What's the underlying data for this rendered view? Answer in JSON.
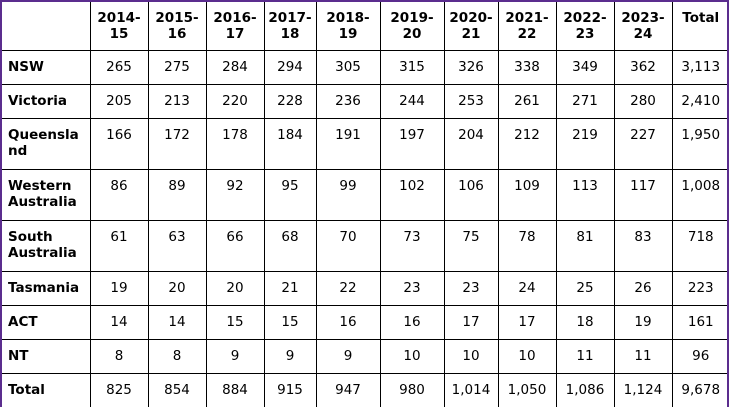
{
  "table": {
    "corner": "",
    "headers": [
      [
        "2014-",
        "15"
      ],
      [
        "2015-",
        "16"
      ],
      [
        "2016-",
        "17"
      ],
      [
        "2017-",
        "18"
      ],
      [
        "2018-",
        "19"
      ],
      [
        "2019-",
        "20"
      ],
      [
        "2020-",
        "21"
      ],
      [
        "2021-",
        "22"
      ],
      [
        "2022-",
        "23"
      ],
      [
        "2023-",
        "24"
      ],
      [
        "Total",
        ""
      ]
    ],
    "rows": [
      {
        "label": [
          "NSW"
        ],
        "values": [
          "265",
          "275",
          "284",
          "294",
          "305",
          "315",
          "326",
          "338",
          "349",
          "362",
          "3,113"
        ]
      },
      {
        "label": [
          "Victoria"
        ],
        "values": [
          "205",
          "213",
          "220",
          "228",
          "236",
          "244",
          "253",
          "261",
          "271",
          "280",
          "2,410"
        ]
      },
      {
        "label": [
          "Queensla",
          "nd"
        ],
        "values": [
          "166",
          "172",
          "178",
          "184",
          "191",
          "197",
          "204",
          "212",
          "219",
          "227",
          "1,950"
        ]
      },
      {
        "label": [
          "Western",
          "Australia"
        ],
        "values": [
          "86",
          "89",
          "92",
          "95",
          "99",
          "102",
          "106",
          "109",
          "113",
          "117",
          "1,008"
        ]
      },
      {
        "label": [
          "South",
          "Australia"
        ],
        "values": [
          "61",
          "63",
          "66",
          "68",
          "70",
          "73",
          "75",
          "78",
          "81",
          "83",
          "718"
        ]
      },
      {
        "label": [
          "Tasmania"
        ],
        "values": [
          "19",
          "20",
          "20",
          "21",
          "22",
          "23",
          "23",
          "24",
          "25",
          "26",
          "223"
        ]
      },
      {
        "label": [
          "ACT"
        ],
        "values": [
          "14",
          "14",
          "15",
          "15",
          "16",
          "16",
          "17",
          "17",
          "18",
          "19",
          "161"
        ]
      },
      {
        "label": [
          "NT"
        ],
        "values": [
          "8",
          "8",
          "9",
          "9",
          "9",
          "10",
          "10",
          "10",
          "11",
          "11",
          "96"
        ]
      },
      {
        "label": [
          "Total"
        ],
        "values": [
          "825",
          "854",
          "884",
          "915",
          "947",
          "980",
          "1,014",
          "1,050",
          "1,086",
          "1,124",
          "9,678"
        ]
      }
    ],
    "colors": {
      "frame_border": "#5b2d8e",
      "grid": "#000000",
      "background": "#ffffff"
    }
  }
}
